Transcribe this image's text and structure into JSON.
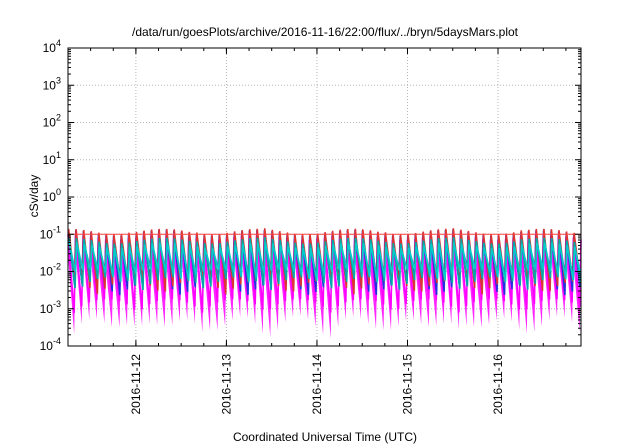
{
  "chart_data": {
    "type": "line",
    "title": "/data/run/goesPlots/archive/2016-11-16/22:00/flux/../bryn/5daysMars.plot",
    "xlabel": "Coordinated Universal Time (UTC)",
    "ylabel": "cSv/day",
    "yscale": "log",
    "ylim": [
      0.0001,
      10000
    ],
    "yticks": [
      {
        "value": 0.0001,
        "base": "10",
        "exp": "-4"
      },
      {
        "value": 0.001,
        "base": "10",
        "exp": "-3"
      },
      {
        "value": 0.01,
        "base": "10",
        "exp": "-2"
      },
      {
        "value": 0.1,
        "base": "10",
        "exp": "-1"
      },
      {
        "value": 1,
        "base": "10",
        "exp": "0"
      },
      {
        "value": 10,
        "base": "10",
        "exp": "1"
      },
      {
        "value": 100,
        "base": "10",
        "exp": "2"
      },
      {
        "value": 1000,
        "base": "10",
        "exp": "3"
      },
      {
        "value": 10000,
        "base": "10",
        "exp": "4"
      }
    ],
    "xlim": [
      "2016-11-11 06:00",
      "2016-11-16 22:00"
    ],
    "xticks": [
      "2016-11-12",
      "2016-11-13",
      "2016-11-14",
      "2016-11-15",
      "2016-11-16"
    ],
    "grid": true,
    "legend": "none",
    "reference_line": {
      "value": 0.1,
      "color": "#ff4444"
    },
    "orbit_period_hours": 2,
    "series": [
      {
        "color": "#ff00ff",
        "peak": 0.1,
        "trough": 0.0013,
        "spread_low": 0.0013,
        "spread_high": 0.011
      },
      {
        "color": "#2233dd",
        "peak": 0.13,
        "trough": 0.0035
      },
      {
        "color": "#dd3333",
        "peak": 0.14,
        "trough": 0.004
      },
      {
        "color": "#00aaaa",
        "peak": 0.08,
        "trough": 0.005
      },
      {
        "color": "#00cccc",
        "peak": 0.06,
        "trough": 0.008
      }
    ]
  }
}
